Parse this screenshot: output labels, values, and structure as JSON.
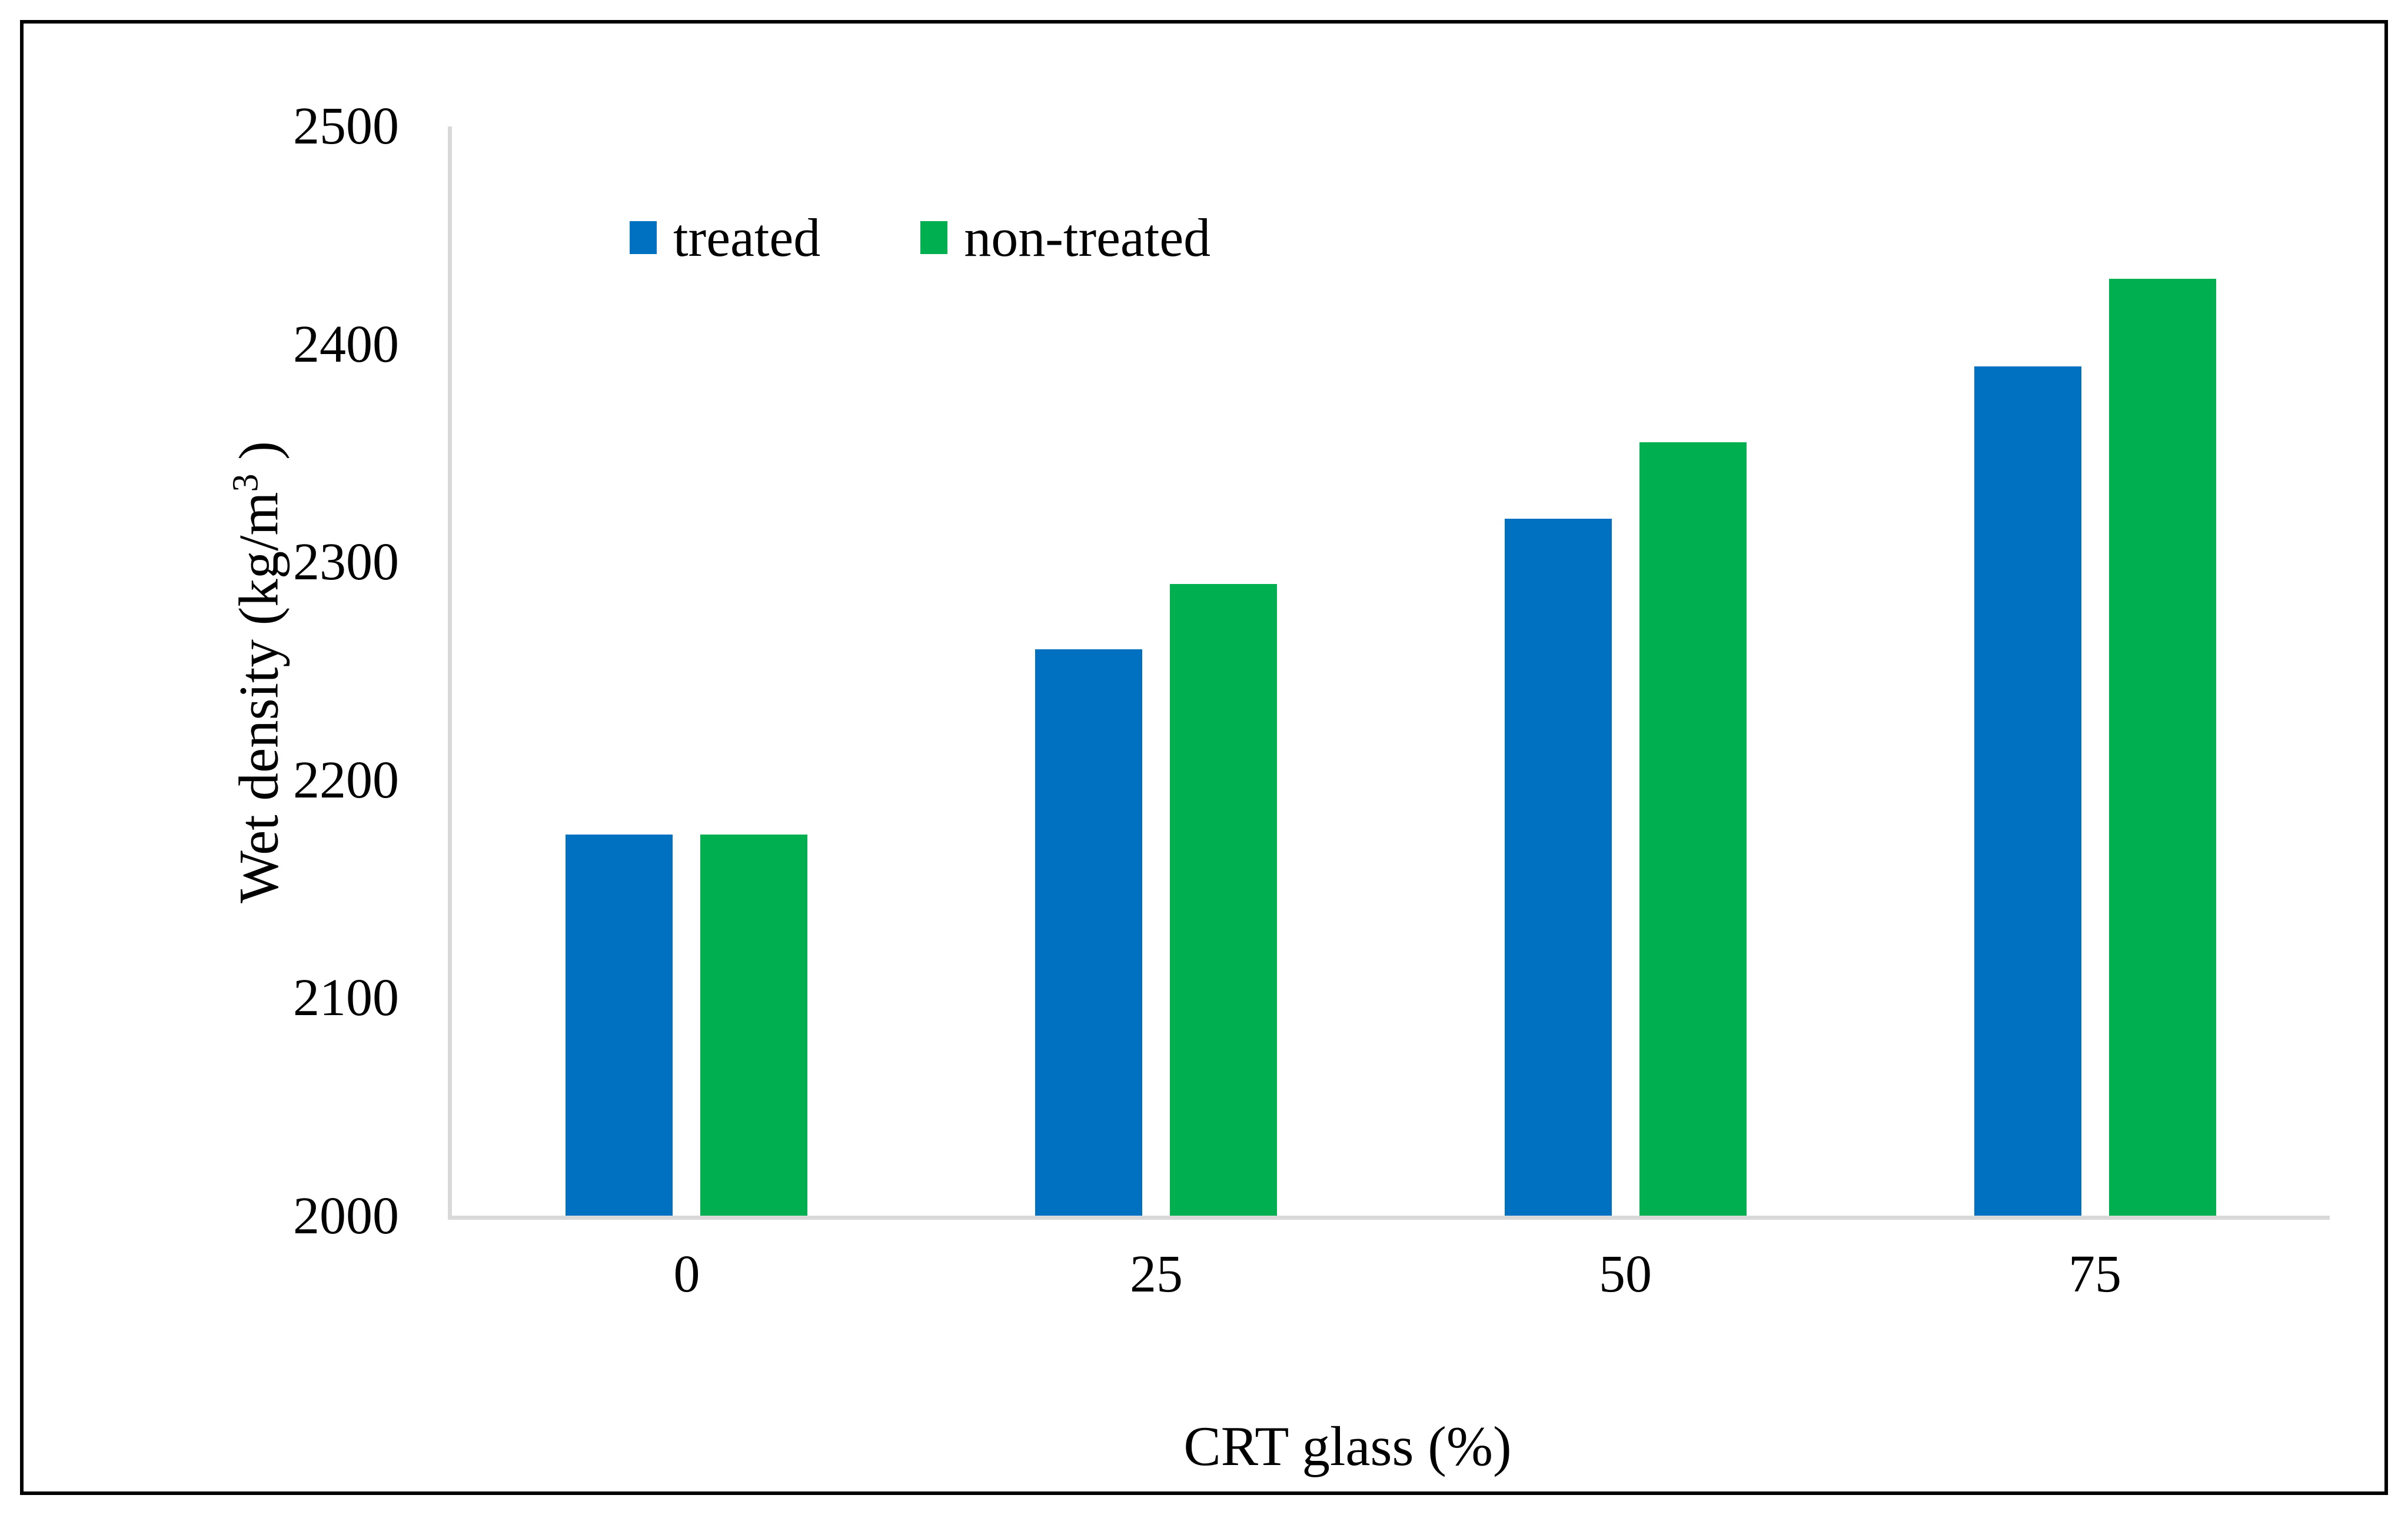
{
  "chart_data": {
    "type": "bar",
    "title": "",
    "categories": [
      "0",
      "25",
      "50",
      "75"
    ],
    "series": [
      {
        "name": "treated",
        "color": "#0070C0",
        "values": [
          2175,
          2260,
          2320,
          2390
        ]
      },
      {
        "name": "non-treated",
        "color": "#00B050",
        "values": [
          2175,
          2290,
          2355,
          2430
        ]
      }
    ],
    "xlabel": "CRT glass (%)",
    "ylabel": "Wet density (kg/m³ )",
    "ylabel_parts": {
      "prefix": "Wet density (kg/m",
      "sup": "3",
      "suffix": " )"
    },
    "ylim": [
      2000,
      2500
    ],
    "yticks": [
      "2000",
      "2100",
      "2200",
      "2300",
      "2400",
      "2500"
    ],
    "grid": false,
    "legend_position": "top-inside",
    "colors": {
      "axis_line": "#D9D9D9",
      "text": "#000000",
      "background": "#FFFFFF",
      "border": "#000000"
    }
  }
}
